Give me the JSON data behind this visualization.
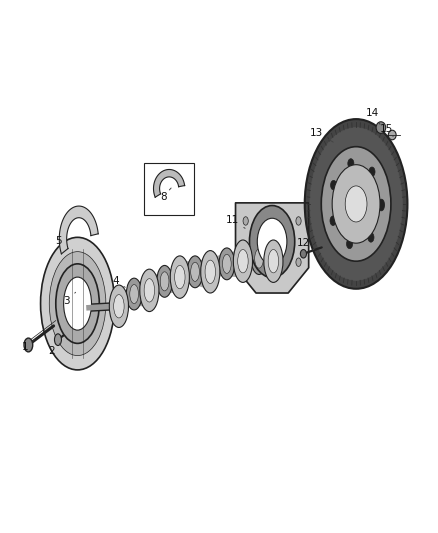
{
  "background_color": "#ffffff",
  "fig_width": 4.38,
  "fig_height": 5.33,
  "dpi": 100,
  "labels_info": {
    "1": [
      0.055,
      0.348,
      0.075,
      0.362
    ],
    "2": [
      0.115,
      0.34,
      0.135,
      0.355
    ],
    "3": [
      0.15,
      0.435,
      0.175,
      0.455
    ],
    "4": [
      0.262,
      0.472,
      0.29,
      0.458
    ],
    "5": [
      0.132,
      0.548,
      0.158,
      0.538
    ],
    "8": [
      0.372,
      0.632,
      0.39,
      0.648
    ],
    "11": [
      0.53,
      0.588,
      0.56,
      0.572
    ],
    "12": [
      0.695,
      0.545,
      0.718,
      0.532
    ],
    "13": [
      0.725,
      0.752,
      0.768,
      0.732
    ],
    "14": [
      0.852,
      0.79,
      0.87,
      0.768
    ],
    "15": [
      0.885,
      0.76,
      0.9,
      0.745
    ]
  }
}
